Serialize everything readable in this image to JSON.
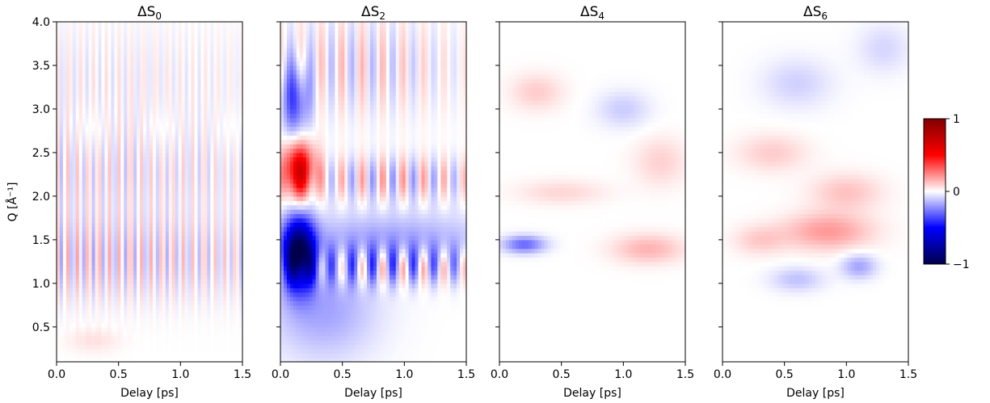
{
  "chart_data": {
    "type": "heatmap",
    "colormap": "seismic",
    "colors": {
      "positive": "#d40000",
      "negative": "#0000cc",
      "zero": "#ffffff",
      "extreme_positive": "#800000",
      "extreme_negative": "#00004d"
    },
    "shared_y_axis": true,
    "y_label": "Q [Å⁻¹]",
    "y_range": [
      0.1,
      4.0
    ],
    "y_ticks": [
      "0.5",
      "1.0",
      "1.5",
      "2.0",
      "2.5",
      "3.0",
      "3.5",
      "4.0"
    ],
    "x_range": [
      0.0,
      1.5
    ],
    "x_ticks": [
      "0.0",
      "0.5",
      "1.0",
      "1.5"
    ],
    "colorbar": {
      "range": [
        -1,
        1
      ],
      "ticks": [
        "1",
        "0",
        "−1"
      ]
    },
    "panels": [
      {
        "title": "ΔS",
        "subscript": "0",
        "xlabel": "Delay [ps]",
        "description": "weak stripes",
        "features": [
          {
            "t": 0.0,
            "q": 1.3,
            "amp": 0.18,
            "sigma_t": 1.5,
            "sigma_q": 0.35,
            "osc_period": 0.085
          },
          {
            "t": 0.0,
            "q": 2.3,
            "amp": 0.12,
            "sigma_t": 1.5,
            "sigma_q": 0.35,
            "osc_period": 0.085
          },
          {
            "t": 0.0,
            "q": 3.3,
            "amp": 0.07,
            "sigma_t": 1.5,
            "sigma_q": 0.5,
            "osc_period": 0.1
          },
          {
            "t": 0.3,
            "q": 0.35,
            "amp": 0.06,
            "sigma_t": 0.15,
            "sigma_q": 0.1
          }
        ]
      },
      {
        "title": "ΔS",
        "subscript": "2",
        "xlabel": "Delay [ps]",
        "description": "strong signal",
        "features": [
          {
            "t": 0.15,
            "q": 1.35,
            "amp": -1.0,
            "sigma_t": 0.09,
            "sigma_q": 0.28
          },
          {
            "t": 0.15,
            "q": 2.3,
            "amp": 0.65,
            "sigma_t": 0.09,
            "sigma_q": 0.22
          },
          {
            "t": 0.12,
            "q": 3.1,
            "amp": -0.35,
            "sigma_t": 0.08,
            "sigma_q": 0.3
          },
          {
            "t": 0.35,
            "q": 0.7,
            "amp": -0.18,
            "sigma_t": 0.3,
            "sigma_q": 0.4
          },
          {
            "t": 0.9,
            "q": 1.45,
            "amp": -0.2,
            "sigma_t": 0.6,
            "sigma_q": 0.25
          },
          {
            "t": 0.9,
            "q": 1.2,
            "amp": 0.3,
            "sigma_t": 0.6,
            "sigma_q": 0.15,
            "osc_period": 0.165
          },
          {
            "t": 0.9,
            "q": 2.2,
            "amp": 0.22,
            "sigma_t": 0.6,
            "sigma_q": 0.18,
            "osc_period": 0.165
          },
          {
            "t": 0.6,
            "q": 3.5,
            "amp": 0.15,
            "sigma_t": 0.6,
            "sigma_q": 0.4,
            "osc_period": 0.165
          }
        ]
      },
      {
        "title": "ΔS",
        "subscript": "4",
        "xlabel": "Delay [ps]",
        "description": "weak patches",
        "features": [
          {
            "t": 0.2,
            "q": 1.45,
            "amp": -0.3,
            "sigma_t": 0.12,
            "sigma_q": 0.07
          },
          {
            "t": 1.2,
            "q": 1.4,
            "amp": 0.15,
            "sigma_t": 0.2,
            "sigma_q": 0.12
          },
          {
            "t": 0.5,
            "q": 2.05,
            "amp": 0.08,
            "sigma_t": 0.25,
            "sigma_q": 0.1
          },
          {
            "t": 1.0,
            "q": 3.0,
            "amp": -0.1,
            "sigma_t": 0.15,
            "sigma_q": 0.15
          },
          {
            "t": 0.3,
            "q": 3.2,
            "amp": 0.1,
            "sigma_t": 0.15,
            "sigma_q": 0.15
          },
          {
            "t": 1.3,
            "q": 2.4,
            "amp": 0.09,
            "sigma_t": 0.15,
            "sigma_q": 0.2
          }
        ]
      },
      {
        "title": "ΔS",
        "subscript": "6",
        "xlabel": "Delay [ps]",
        "description": "weak patches",
        "features": [
          {
            "t": 0.85,
            "q": 1.6,
            "amp": 0.2,
            "sigma_t": 0.25,
            "sigma_q": 0.15
          },
          {
            "t": 0.3,
            "q": 1.5,
            "amp": 0.1,
            "sigma_t": 0.15,
            "sigma_q": 0.12
          },
          {
            "t": 1.1,
            "q": 1.2,
            "amp": -0.18,
            "sigma_t": 0.1,
            "sigma_q": 0.1
          },
          {
            "t": 0.6,
            "q": 1.05,
            "amp": -0.12,
            "sigma_t": 0.15,
            "sigma_q": 0.1
          },
          {
            "t": 1.0,
            "q": 2.05,
            "amp": 0.12,
            "sigma_t": 0.2,
            "sigma_q": 0.15
          },
          {
            "t": 0.4,
            "q": 2.5,
            "amp": 0.1,
            "sigma_t": 0.2,
            "sigma_q": 0.15
          },
          {
            "t": 0.6,
            "q": 3.3,
            "amp": -0.09,
            "sigma_t": 0.2,
            "sigma_q": 0.2
          },
          {
            "t": 1.3,
            "q": 3.7,
            "amp": -0.08,
            "sigma_t": 0.15,
            "sigma_q": 0.2
          }
        ]
      }
    ]
  }
}
